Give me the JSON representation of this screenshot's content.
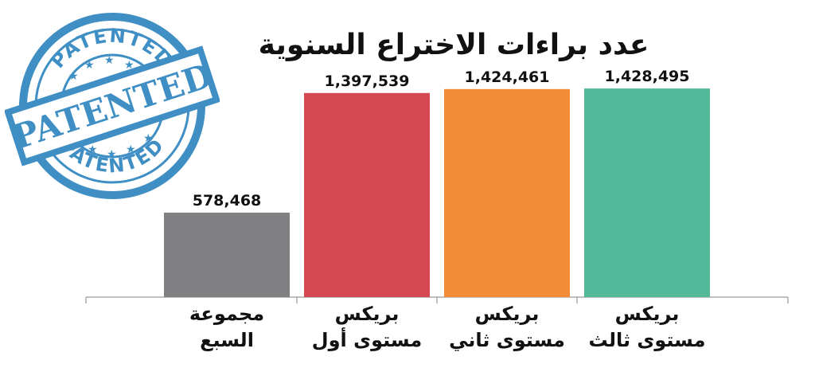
{
  "chart_data": {
    "type": "bar",
    "title": "عدد براءات الاختراع السنوية",
    "categories": [
      [
        "مجموعة",
        "السبع"
      ],
      [
        "بريكس",
        "مستوى أول"
      ],
      [
        "بريكس",
        "مستوى ثاني"
      ],
      [
        "بريكس",
        "مستوى ثالث"
      ]
    ],
    "values": [
      578468,
      1397539,
      1424461,
      1428495
    ],
    "value_labels": [
      "578,468",
      "1,397,539",
      "1,424,461",
      "1,428,495"
    ],
    "colors": [
      "#808083",
      "#d64754",
      "#f38b37",
      "#54b999"
    ],
    "ylim": [
      0,
      1500000
    ],
    "grid": false,
    "legend": "none"
  },
  "stamp": {
    "text_ring_top": "PATENTED",
    "text_ring_bottom": "PATENTED",
    "text_center": "PATENTED",
    "color": "#3f8fc4"
  }
}
